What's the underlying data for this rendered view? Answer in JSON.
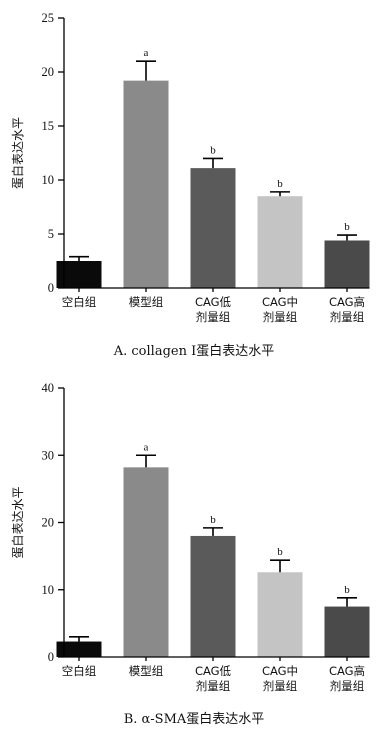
{
  "chart_data": [
    {
      "type": "bar",
      "caption": "A. collagen Ⅰ蛋白表达水平",
      "ylabel": "蛋白表达水平",
      "xlabel": "",
      "ylim": [
        0,
        25
      ],
      "yticks": [
        0,
        5,
        10,
        15,
        20,
        25
      ],
      "categories": [
        [
          "空白组"
        ],
        [
          "模型组"
        ],
        [
          "CAG低",
          "剂量组"
        ],
        [
          "CAG中",
          "剂量组"
        ],
        [
          "CAG高",
          "剂量组"
        ]
      ],
      "values": [
        2.5,
        19.2,
        11.1,
        8.5,
        4.4
      ],
      "errors": [
        0.4,
        1.8,
        0.9,
        0.4,
        0.5
      ],
      "significance": [
        "",
        "a",
        "b",
        "b",
        "b"
      ],
      "colors": [
        "#0a0a0a",
        "#8a8a8a",
        "#5a5a5a",
        "#c4c4c4",
        "#4a4a4a"
      ]
    },
    {
      "type": "bar",
      "caption": "B. α-SMA蛋白表达水平",
      "ylabel": "蛋白表达水平",
      "xlabel": "",
      "ylim": [
        0,
        40
      ],
      "yticks": [
        0,
        10,
        20,
        30,
        40
      ],
      "categories": [
        [
          "空白组"
        ],
        [
          "模型组"
        ],
        [
          "CAG低",
          "剂量组"
        ],
        [
          "CAG中",
          "剂量组"
        ],
        [
          "CAG高",
          "剂量组"
        ]
      ],
      "values": [
        2.3,
        28.2,
        18.0,
        12.6,
        7.5
      ],
      "errors": [
        0.7,
        1.8,
        1.2,
        1.8,
        1.3
      ],
      "significance": [
        "",
        "a",
        "b",
        "b",
        "b"
      ],
      "colors": [
        "#0a0a0a",
        "#8a8a8a",
        "#5a5a5a",
        "#c4c4c4",
        "#4a4a4a"
      ]
    }
  ]
}
